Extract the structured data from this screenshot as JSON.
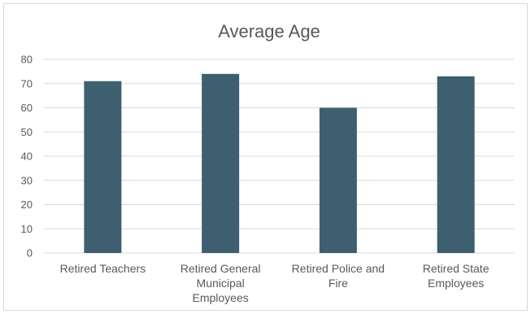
{
  "chart_data": {
    "type": "bar",
    "title": "Average Age",
    "categories": [
      [
        "Retired Teachers"
      ],
      [
        "Retired General",
        "Municipal",
        "Employees"
      ],
      [
        "Retired Police and",
        "Fire"
      ],
      [
        "Retired State",
        "Employees"
      ]
    ],
    "series": [
      {
        "values": [
          71,
          74,
          60,
          73
        ]
      }
    ],
    "ylim": [
      0,
      80
    ],
    "yticks": [
      0,
      10,
      20,
      30,
      40,
      50,
      60,
      70,
      80
    ],
    "grid": true,
    "colors": {
      "bar": "#3e5f6f",
      "grid": "#d9d9d9",
      "text": "#595959"
    }
  }
}
